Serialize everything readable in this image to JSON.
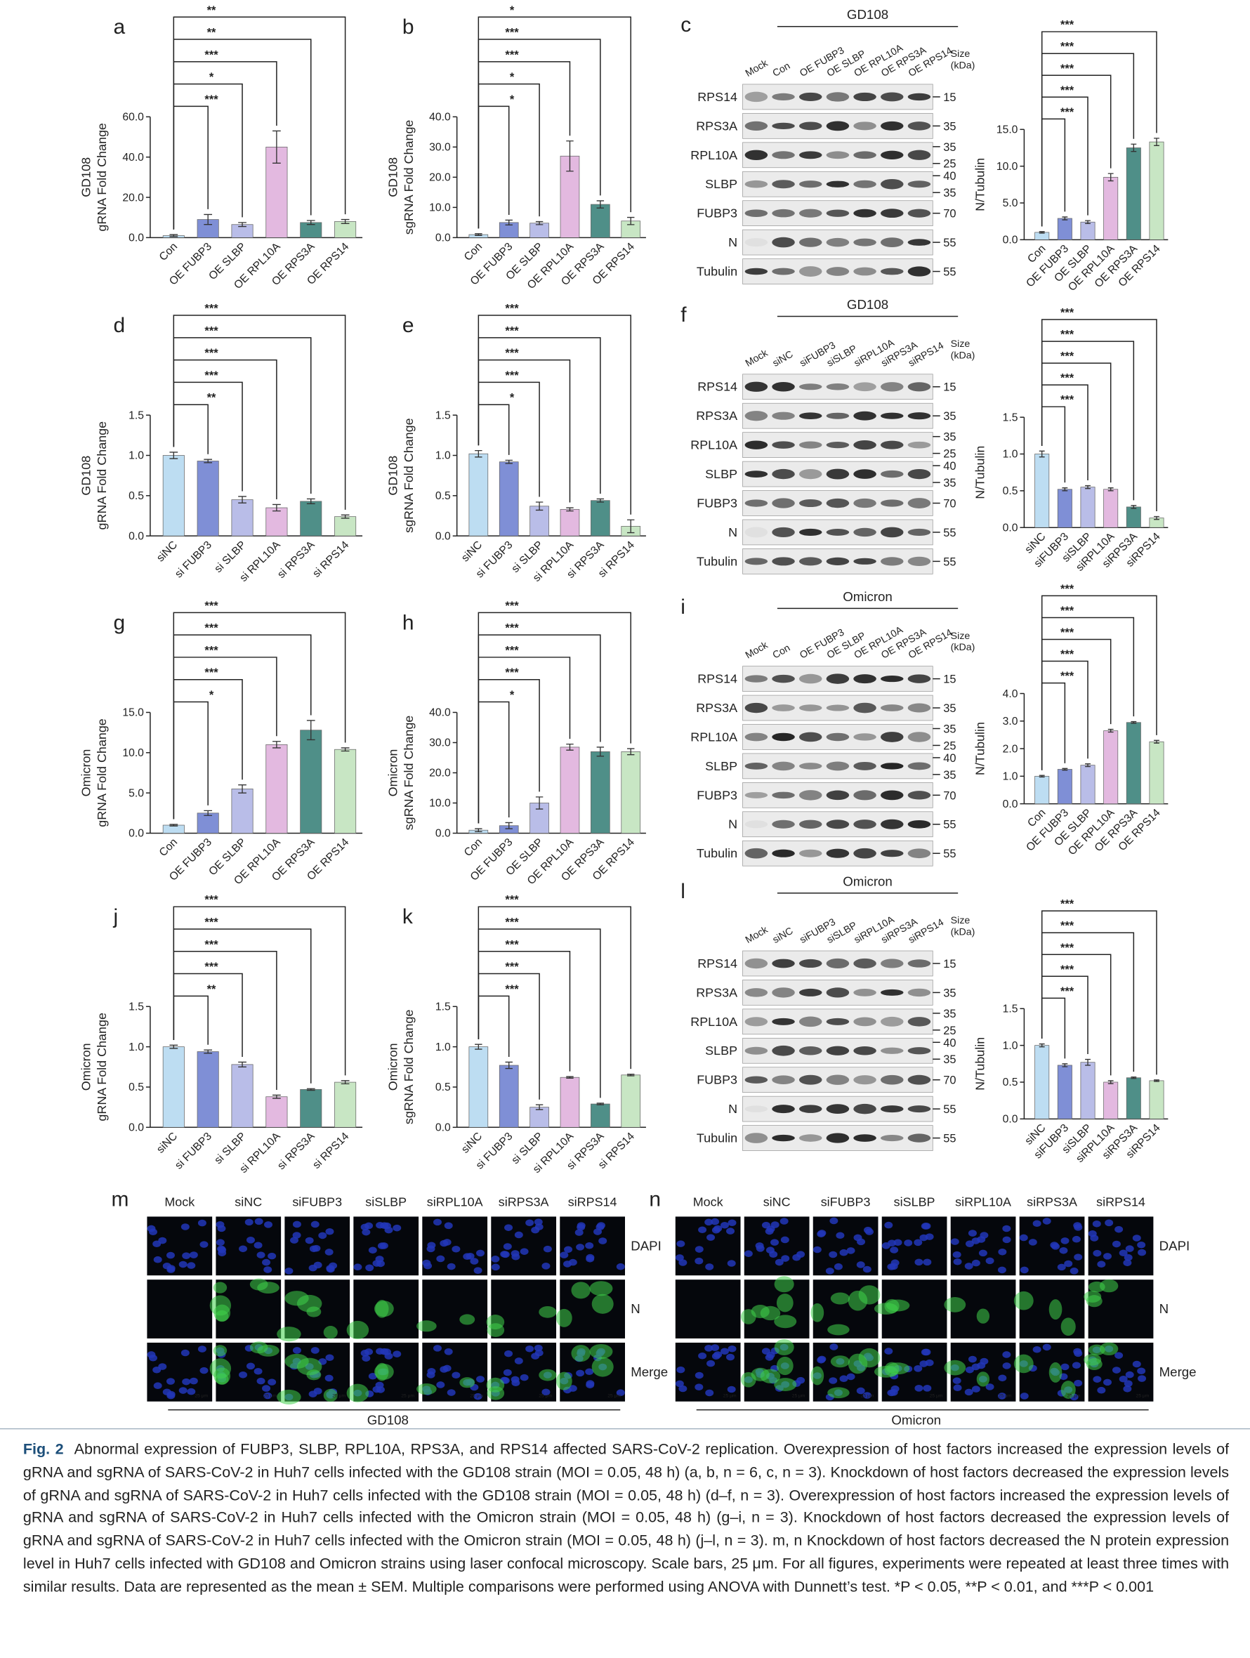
{
  "chart_data": [
    {
      "type": "bar",
      "panel": "a",
      "ylabel": [
        "GD108",
        "gRNA Fold Change"
      ],
      "categories": [
        "Con",
        "OE FUBP3",
        "OE SLBP",
        "OE RPL10A",
        "OE RPS3A",
        "OE RPS14"
      ],
      "values": [
        1,
        9,
        6.5,
        45,
        7.5,
        8
      ],
      "errors": [
        0.5,
        2.5,
        1,
        8,
        1,
        1
      ],
      "colors": [
        "#bdddf2",
        "#7f8fd6",
        "#b9bde8",
        "#e3b9e0",
        "#4f8f88",
        "#c8e6c4"
      ],
      "ylim": [
        0,
        60
      ],
      "yticks": [
        {
          "value": 0,
          "label": "0.0"
        },
        {
          "value": 20,
          "label": "20.0"
        },
        {
          "value": 40,
          "label": "40.0"
        },
        {
          "value": 60,
          "label": "60.0"
        }
      ],
      "significance": [
        "***",
        "*",
        "***",
        "**",
        "**"
      ]
    },
    {
      "type": "bar",
      "panel": "b",
      "ylabel": [
        "GD108",
        "sgRNA Fold Change"
      ],
      "categories": [
        "Con",
        "OE FUBP3",
        "OE SLBP",
        "OE RPL10A",
        "OE RPS3A",
        "OE RPS14"
      ],
      "values": [
        1,
        5,
        4.8,
        27,
        11,
        5.5
      ],
      "errors": [
        0.3,
        0.8,
        0.5,
        5,
        1.2,
        1.2
      ],
      "colors": [
        "#bdddf2",
        "#7f8fd6",
        "#b9bde8",
        "#e3b9e0",
        "#4f8f88",
        "#c8e6c4"
      ],
      "ylim": [
        0,
        40
      ],
      "yticks": [
        {
          "value": 0,
          "label": "0.0"
        },
        {
          "value": 10,
          "label": "10.0"
        },
        {
          "value": 20,
          "label": "20.0"
        },
        {
          "value": 30,
          "label": "30.0"
        },
        {
          "value": 40,
          "label": "40.0"
        }
      ],
      "significance": [
        "*",
        "*",
        "***",
        "***",
        "*"
      ]
    },
    {
      "type": "bar",
      "ylabel": [
        "N/Tubulin"
      ],
      "categories": [
        "Con",
        "OE FUBP3",
        "OE SLBP",
        "OE RPL10A",
        "OE RPS3A",
        "OE RPS14"
      ],
      "values": [
        1,
        2.9,
        2.4,
        8.5,
        12.5,
        13.3
      ],
      "errors": [
        0.1,
        0.2,
        0.2,
        0.5,
        0.5,
        0.5
      ],
      "colors": [
        "#bdddf2",
        "#7f8fd6",
        "#b9bde8",
        "#e3b9e0",
        "#4f8f88",
        "#c8e6c4"
      ],
      "ylim": [
        0,
        15
      ],
      "yticks": [
        {
          "value": 0,
          "label": "0.0"
        },
        {
          "value": 5,
          "label": "5.0"
        },
        {
          "value": 10,
          "label": "10.0"
        },
        {
          "value": 15,
          "label": "15.0"
        }
      ],
      "significance": [
        "***",
        "***",
        "***",
        "***",
        "***"
      ]
    },
    {
      "type": "bar",
      "panel": "d",
      "ylabel": [
        "GD108",
        "gRNA Fold Change"
      ],
      "categories": [
        "siNC",
        "si FUBP3",
        "si SLBP",
        "si RPL10A",
        "si RPS3A",
        "si RPS14"
      ],
      "values": [
        1.0,
        0.93,
        0.45,
        0.35,
        0.43,
        0.24
      ],
      "errors": [
        0.04,
        0.02,
        0.04,
        0.04,
        0.03,
        0.02
      ],
      "colors": [
        "#bdddf2",
        "#7f8fd6",
        "#b9bde8",
        "#e3b9e0",
        "#4f8f88",
        "#c8e6c4"
      ],
      "ylim": [
        0,
        1.5
      ],
      "yticks": [
        {
          "value": 0,
          "label": "0.0"
        },
        0.5,
        {
          "value": 1,
          "label": "1.0"
        },
        1.5
      ],
      "significance": [
        "**",
        "***",
        "***",
        "***",
        "***"
      ]
    },
    {
      "type": "bar",
      "panel": "e",
      "ylabel": [
        "GD108",
        "sgRNA Fold Change"
      ],
      "categories": [
        "siNC",
        "si FUBP3",
        "si SLBP",
        "si RPL10A",
        "si RPS3A",
        "si RPS14"
      ],
      "values": [
        1.02,
        0.92,
        0.37,
        0.33,
        0.44,
        0.12
      ],
      "errors": [
        0.04,
        0.02,
        0.05,
        0.02,
        0.02,
        0.08
      ],
      "colors": [
        "#bdddf2",
        "#7f8fd6",
        "#b9bde8",
        "#e3b9e0",
        "#4f8f88",
        "#c8e6c4"
      ],
      "ylim": [
        0,
        1.5
      ],
      "yticks": [
        {
          "value": 0,
          "label": "0.0"
        },
        0.5,
        {
          "value": 1,
          "label": "1.0"
        },
        1.5
      ],
      "significance": [
        "*",
        "***",
        "***",
        "***",
        "***"
      ]
    },
    {
      "type": "bar",
      "ylabel": [
        "N/Tubulin"
      ],
      "categories": [
        "siNC",
        "siFUBP3",
        "siSLBP",
        "siRPL10A",
        "siRPS3A",
        "siRPS14"
      ],
      "values": [
        1.0,
        0.52,
        0.55,
        0.52,
        0.28,
        0.13
      ],
      "errors": [
        0.04,
        0.02,
        0.02,
        0.02,
        0.02,
        0.02
      ],
      "colors": [
        "#bdddf2",
        "#7f8fd6",
        "#b9bde8",
        "#e3b9e0",
        "#4f8f88",
        "#c8e6c4"
      ],
      "ylim": [
        0,
        1.5
      ],
      "yticks": [
        {
          "value": 0,
          "label": "0.0"
        },
        0.5,
        {
          "value": 1,
          "label": "1.0"
        },
        1.5
      ],
      "significance": [
        "***",
        "***",
        "***",
        "***",
        "***"
      ]
    },
    {
      "type": "bar",
      "panel": "g",
      "ylabel": [
        "Omicron",
        "gRNA Fold Change"
      ],
      "categories": [
        "Con",
        "OE FUBP3",
        "OE SLBP",
        "OE RPL10A",
        "OE RPS3A",
        "OE RPS14"
      ],
      "values": [
        1,
        2.5,
        5.5,
        11,
        12.8,
        10.4
      ],
      "errors": [
        0.1,
        0.3,
        0.5,
        0.4,
        1.2,
        0.2
      ],
      "colors": [
        "#bdddf2",
        "#7f8fd6",
        "#b9bde8",
        "#e3b9e0",
        "#4f8f88",
        "#c8e6c4"
      ],
      "ylim": [
        0,
        15
      ],
      "yticks": [
        {
          "value": 0,
          "label": "0.0"
        },
        {
          "value": 5,
          "label": "5.0"
        },
        {
          "value": 10,
          "label": "10.0"
        },
        {
          "value": 15,
          "label": "15.0"
        }
      ],
      "significance": [
        "*",
        "***",
        "***",
        "***",
        "***"
      ]
    },
    {
      "type": "bar",
      "panel": "h",
      "ylabel": [
        "Omicron",
        "sgRNA Fold Change"
      ],
      "categories": [
        "Con",
        "OE FUBP3",
        "OE SLBP",
        "OE RPL10A",
        "OE RPS3A",
        "OE RPS14"
      ],
      "values": [
        1,
        2.5,
        10,
        28.5,
        27,
        27
      ],
      "errors": [
        0.5,
        1,
        2,
        1,
        1.5,
        1
      ],
      "colors": [
        "#bdddf2",
        "#7f8fd6",
        "#b9bde8",
        "#e3b9e0",
        "#4f8f88",
        "#c8e6c4"
      ],
      "ylim": [
        0,
        40
      ],
      "yticks": [
        {
          "value": 0,
          "label": "0.0"
        },
        {
          "value": 10,
          "label": "10.0"
        },
        {
          "value": 20,
          "label": "20.0"
        },
        {
          "value": 30,
          "label": "30.0"
        },
        {
          "value": 40,
          "label": "40.0"
        }
      ],
      "significance": [
        "*",
        "***",
        "***",
        "***",
        "***"
      ]
    },
    {
      "type": "bar",
      "ylabel": [
        "N/Tubulin"
      ],
      "categories": [
        "Con",
        "OE FUBP3",
        "OE SLBP",
        "OE RPL10A",
        "OE RPS3A",
        "OE RPS14"
      ],
      "values": [
        1.0,
        1.25,
        1.4,
        2.65,
        2.95,
        2.25
      ],
      "errors": [
        0.03,
        0.03,
        0.05,
        0.05,
        0.03,
        0.05
      ],
      "colors": [
        "#bdddf2",
        "#7f8fd6",
        "#b9bde8",
        "#e3b9e0",
        "#4f8f88",
        "#c8e6c4"
      ],
      "ylim": [
        0,
        4
      ],
      "yticks": [
        {
          "value": 0,
          "label": "0.0"
        },
        {
          "value": 1,
          "label": "1.0"
        },
        {
          "value": 2,
          "label": "2.0"
        },
        {
          "value": 3,
          "label": "3.0"
        },
        {
          "value": 4,
          "label": "4.0"
        }
      ],
      "significance": [
        "***",
        "***",
        "***",
        "***",
        "***"
      ]
    },
    {
      "type": "bar",
      "panel": "j",
      "ylabel": [
        "Omicron",
        "gRNA Fold Change"
      ],
      "categories": [
        "siNC",
        "si FUBP3",
        "si SLBP",
        "si RPL10A",
        "si RPS3A",
        "si RPS14"
      ],
      "values": [
        1.0,
        0.94,
        0.78,
        0.38,
        0.47,
        0.56
      ],
      "errors": [
        0.02,
        0.02,
        0.03,
        0.02,
        0.01,
        0.02
      ],
      "colors": [
        "#bdddf2",
        "#7f8fd6",
        "#b9bde8",
        "#e3b9e0",
        "#4f8f88",
        "#c8e6c4"
      ],
      "ylim": [
        0,
        1.5
      ],
      "yticks": [
        {
          "value": 0,
          "label": "0.0"
        },
        0.5,
        {
          "value": 1,
          "label": "1.0"
        },
        1.5
      ],
      "significance": [
        "**",
        "***",
        "***",
        "***",
        "***"
      ]
    },
    {
      "type": "bar",
      "panel": "k",
      "ylabel": [
        "Omicron",
        "sgRNA Fold Change"
      ],
      "categories": [
        "siNC",
        "si FUBP3",
        "si SLBP",
        "si RPL10A",
        "si RPS3A",
        "si RPS14"
      ],
      "values": [
        1.0,
        0.77,
        0.25,
        0.62,
        0.29,
        0.65
      ],
      "errors": [
        0.03,
        0.04,
        0.03,
        0.01,
        0.01,
        0.01
      ],
      "colors": [
        "#bdddf2",
        "#7f8fd6",
        "#b9bde8",
        "#e3b9e0",
        "#4f8f88",
        "#c8e6c4"
      ],
      "ylim": [
        0,
        1.5
      ],
      "yticks": [
        {
          "value": 0,
          "label": "0.0"
        },
        0.5,
        {
          "value": 1,
          "label": "1.0"
        },
        1.5
      ],
      "significance": [
        "***",
        "***",
        "***",
        "***",
        "***"
      ]
    },
    {
      "type": "bar",
      "ylabel": [
        "N/Tubulin"
      ],
      "categories": [
        "siNC",
        "siFUBP3",
        "siSLBP",
        "siRPL10A",
        "siRPS3A",
        "siRPS14"
      ],
      "values": [
        1.0,
        0.73,
        0.77,
        0.5,
        0.56,
        0.52
      ],
      "errors": [
        0.02,
        0.02,
        0.04,
        0.02,
        0.01,
        0.01
      ],
      "colors": [
        "#bdddf2",
        "#7f8fd6",
        "#b9bde8",
        "#e3b9e0",
        "#4f8f88",
        "#c8e6c4"
      ],
      "ylim": [
        0,
        1.5
      ],
      "yticks": [
        {
          "value": 0,
          "label": "0.0"
        },
        0.5,
        {
          "value": 1,
          "label": "1.0"
        },
        1.5
      ],
      "significance": [
        "***",
        "***",
        "***",
        "***",
        "***"
      ]
    }
  ],
  "blots": [
    {
      "panel": "c",
      "title": "GD108",
      "lanes": [
        "Mock",
        "Con",
        "OE FUBP3",
        "OE SLBP",
        "OE RPL10A",
        "OE RPS3A",
        "OE RPS14"
      ],
      "size_label": [
        "Size",
        "(kDa)"
      ],
      "rows": [
        {
          "protein": "RPS14",
          "sizes": [
            15
          ]
        },
        {
          "protein": "RPS3A",
          "sizes": [
            35
          ]
        },
        {
          "protein": "RPL10A",
          "sizes": [
            35,
            25
          ]
        },
        {
          "protein": "SLBP",
          "sizes": [
            40,
            35
          ]
        },
        {
          "protein": "FUBP3",
          "sizes": [
            70
          ]
        },
        {
          "protein": "N",
          "sizes": [
            55
          ]
        },
        {
          "protein": "Tubulin",
          "sizes": [
            55
          ]
        }
      ]
    },
    {
      "panel": "f",
      "title": "GD108",
      "lanes": [
        "Mock",
        "siNC",
        "siFUBP3",
        "siSLBP",
        "siRPL10A",
        "siRPS3A",
        "siRPS14"
      ],
      "size_label": [
        "Size",
        "(kDa)"
      ],
      "rows": [
        {
          "protein": "RPS14",
          "sizes": [
            15
          ]
        },
        {
          "protein": "RPS3A",
          "sizes": [
            35
          ]
        },
        {
          "protein": "RPL10A",
          "sizes": [
            35,
            25
          ]
        },
        {
          "protein": "SLBP",
          "sizes": [
            40,
            35
          ]
        },
        {
          "protein": "FUBP3",
          "sizes": [
            70
          ]
        },
        {
          "protein": "N",
          "sizes": [
            55
          ]
        },
        {
          "protein": "Tubulin",
          "sizes": [
            55
          ]
        }
      ]
    },
    {
      "panel": "i",
      "title": "Omicron",
      "lanes": [
        "Mock",
        "Con",
        "OE FUBP3",
        "OE SLBP",
        "OE RPL10A",
        "OE RPS3A",
        "OE RPS14"
      ],
      "size_label": [
        "Size",
        "(kDa)"
      ],
      "rows": [
        {
          "protein": "RPS14",
          "sizes": [
            15
          ]
        },
        {
          "protein": "RPS3A",
          "sizes": [
            35
          ]
        },
        {
          "protein": "RPL10A",
          "sizes": [
            35,
            25
          ]
        },
        {
          "protein": "SLBP",
          "sizes": [
            40,
            35
          ]
        },
        {
          "protein": "FUBP3",
          "sizes": [
            70
          ]
        },
        {
          "protein": "N",
          "sizes": [
            55
          ]
        },
        {
          "protein": "Tubulin",
          "sizes": [
            55
          ]
        }
      ]
    },
    {
      "panel": "l",
      "title": "Omicron",
      "lanes": [
        "Mock",
        "siNC",
        "siFUBP3",
        "siSLBP",
        "siRPL10A",
        "siRPS3A",
        "siRPS14"
      ],
      "size_label": [
        "Size",
        "(kDa)"
      ],
      "rows": [
        {
          "protein": "RPS14",
          "sizes": [
            15
          ]
        },
        {
          "protein": "RPS3A",
          "sizes": [
            35
          ]
        },
        {
          "protein": "RPL10A",
          "sizes": [
            35,
            25
          ]
        },
        {
          "protein": "SLBP",
          "sizes": [
            40,
            35
          ]
        },
        {
          "protein": "FUBP3",
          "sizes": [
            70
          ]
        },
        {
          "protein": "N",
          "sizes": [
            55
          ]
        },
        {
          "protein": "Tubulin",
          "sizes": [
            55
          ]
        }
      ]
    }
  ],
  "microscopy": [
    {
      "panel": "m",
      "strain": "GD108",
      "columns": [
        "Mock",
        "siNC",
        "siFUBP3",
        "siSLBP",
        "siRPL10A",
        "siRPS3A",
        "siRPS14"
      ],
      "channels": [
        "DAPI",
        "N",
        "Merge"
      ],
      "scale_bar": "25 μm"
    },
    {
      "panel": "n",
      "strain": "Omicron",
      "columns": [
        "Mock",
        "siNC",
        "siFUBP3",
        "siSLBP",
        "siRPL10A",
        "siRPS3A",
        "siRPS14"
      ],
      "channels": [
        "DAPI",
        "N",
        "Merge"
      ],
      "scale_bar": "25 μm"
    }
  ],
  "caption": {
    "label": "Fig. 2",
    "text": "Abnormal expression of FUBP3, SLBP, RPL10A, RPS3A, and RPS14 affected SARS-CoV-2 replication. Overexpression of host factors increased the expression levels of gRNA and sgRNA of SARS-CoV-2 in Huh7 cells infected with the GD108 strain (MOI = 0.05, 48 h) (a, b, n = 6, c, n = 3). Knockdown of host factors decreased the expression levels of gRNA and sgRNA of SARS-CoV-2 in Huh7 cells infected with the GD108 strain (MOI = 0.05, 48 h) (d–f, n = 3). Overexpression of host factors increased the expression levels of gRNA and sgRNA of SARS-CoV-2 in Huh7 cells infected with the Omicron strain (MOI = 0.05, 48 h) (g–i, n = 3). Knockdown of host factors decreased the expression levels of gRNA and sgRNA of SARS-CoV-2 in Huh7 cells infected with the Omicron strain (MOI = 0.05, 48 h) (j–l, n = 3). m, n Knockdown of host factors decreased the N protein expression level in Huh7 cells infected with GD108 and Omicron strains using laser confocal microscopy. Scale bars, 25 μm. For all figures, experiments were repeated at least three times with similar results. Data are represented as the mean ± SEM. Multiple comparisons were performed using ANOVA with Dunnett’s test. *P < 0.05, **P < 0.01, and ***P < 0.001"
  }
}
